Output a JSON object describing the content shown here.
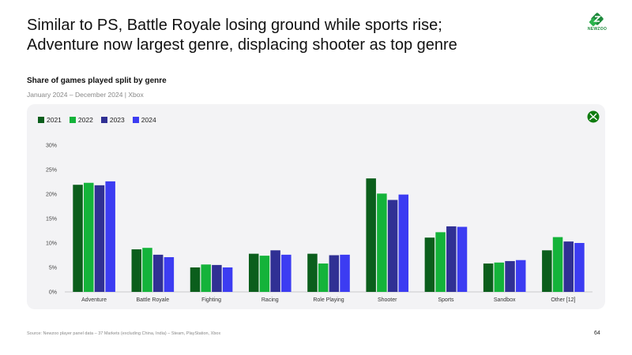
{
  "headline": {
    "line1": "Similar to PS, Battle Royale losing ground while sports rise;",
    "line2": "Adventure now largest genre, displacing shooter as top genre"
  },
  "logo": {
    "text": "NEWZOO",
    "color": "#1e8a3c"
  },
  "footer": {
    "source": "Source: Newzoo player panel data – 37 Markets (excluding China, India) – Steam, PlayStation, Xbox",
    "page_number": "64"
  },
  "chart_data": {
    "type": "bar",
    "title": "Share of games played split by genre",
    "subtitle": "January 2024 – December 2024 | Xbox",
    "categories": [
      "Adventure",
      "Battle Royale",
      "Fighting",
      "Racing",
      "Role Playing",
      "Shooter",
      "Sports",
      "Sandbox",
      "Other [12]"
    ],
    "series": [
      {
        "name": "2021",
        "color": "#0b5e1c",
        "values": [
          21.9,
          8.7,
          5.0,
          7.8,
          7.8,
          23.2,
          11.1,
          5.8,
          8.5
        ]
      },
      {
        "name": "2022",
        "color": "#14b33a",
        "values": [
          22.3,
          9.0,
          5.6,
          7.4,
          5.8,
          20.1,
          12.2,
          6.0,
          11.2
        ]
      },
      {
        "name": "2023",
        "color": "#303094",
        "values": [
          21.8,
          7.6,
          5.5,
          8.5,
          7.5,
          18.8,
          13.4,
          6.3,
          10.3
        ]
      },
      {
        "name": "2024",
        "color": "#3c3cf2",
        "values": [
          22.6,
          7.1,
          5.0,
          7.6,
          7.6,
          19.9,
          13.3,
          6.5,
          10.0
        ]
      }
    ],
    "yticks": [
      "0%",
      "5%",
      "10%",
      "15%",
      "20%",
      "25%",
      "30%"
    ],
    "ylim": [
      0,
      30
    ],
    "xlabel": "",
    "ylabel": "",
    "legend_position": "top-left"
  }
}
